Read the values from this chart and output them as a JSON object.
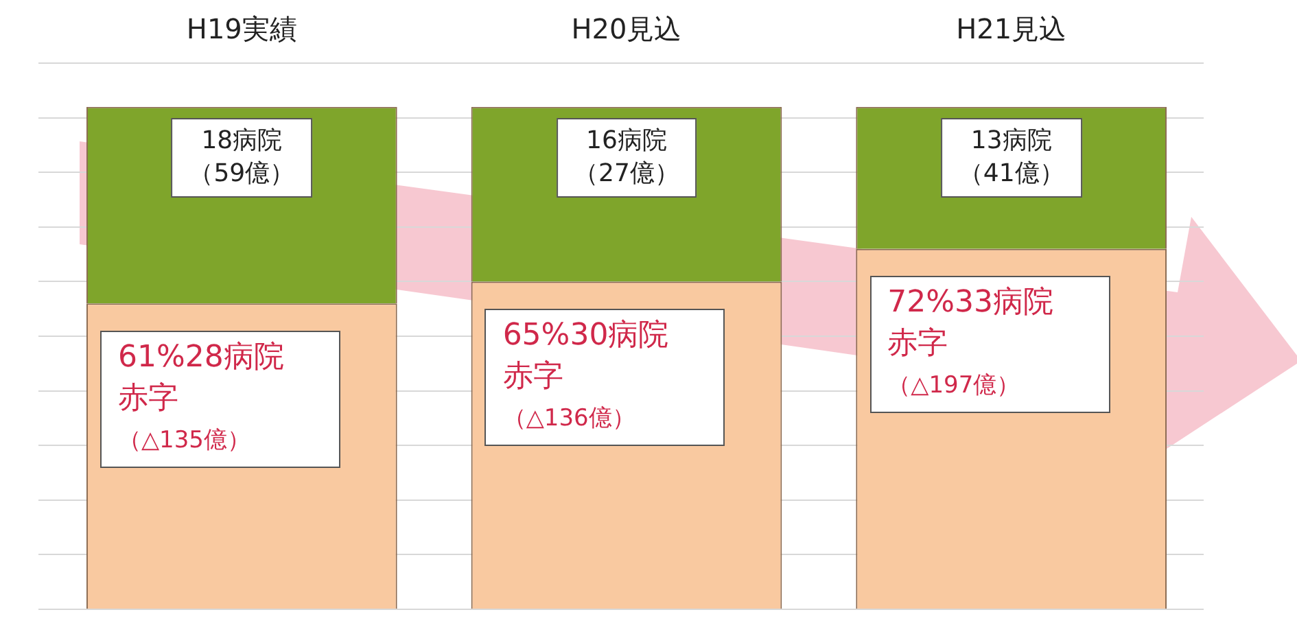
{
  "chart_data": {
    "type": "bar",
    "stacked": true,
    "categories": [
      "H19実績",
      "H20見込",
      "H21見込"
    ],
    "series": [
      {
        "color": "#f9c9a0",
        "values": [
          28,
          30,
          33
        ],
        "value_labels": [
          "61%28病院赤字（△135億）",
          "65%30病院赤字（△136億）",
          "72%33病院赤字（△197億）"
        ]
      },
      {
        "color": "#7fa52b",
        "values": [
          18,
          16,
          13
        ],
        "value_labels": [
          "18病院（59億）",
          "16病院（27億）",
          "13病院（41億）"
        ]
      }
    ],
    "grid": "y",
    "tick_labels": "x",
    "legend": false
  }
}
